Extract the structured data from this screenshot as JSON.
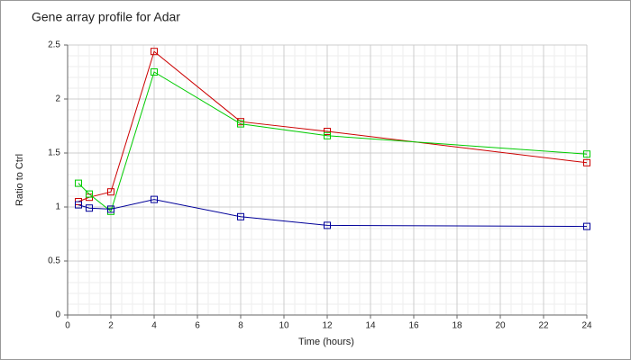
{
  "chart_data": {
    "type": "line",
    "title": "Gene array profile for Adar",
    "x_label": "Time (hours)",
    "y_label": "Ratio to Ctrl",
    "x": [
      0.5,
      1,
      2,
      4,
      8,
      12,
      24
    ],
    "series": [
      {
        "color": "#cc0000",
        "values": [
          1.05,
          1.09,
          1.14,
          2.44,
          1.79,
          1.7,
          1.41
        ]
      },
      {
        "color": "#00cc00",
        "values": [
          1.22,
          1.12,
          0.96,
          2.25,
          1.77,
          1.66,
          1.49
        ]
      },
      {
        "color": "#000099",
        "values": [
          1.02,
          0.99,
          0.98,
          1.07,
          0.91,
          0.83,
          0.82
        ]
      }
    ],
    "xlim": [
      0,
      24
    ],
    "xticks": [
      0,
      2,
      4,
      6,
      8,
      10,
      12,
      14,
      16,
      18,
      20,
      22,
      24
    ],
    "ylim": [
      0,
      2.5
    ],
    "yticks": [
      0,
      0.5,
      1,
      1.5,
      2,
      2.5
    ],
    "grid": true
  }
}
